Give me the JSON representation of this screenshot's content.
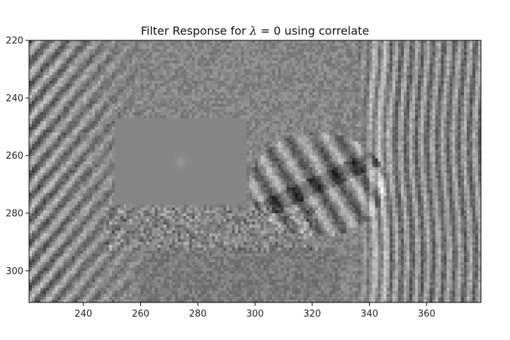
{
  "chart_data": {
    "type": "heatmap",
    "title": {
      "prefix": "Filter Response for ",
      "math": "λ",
      "suffix": " = 0 using correlate"
    },
    "xlabel": "",
    "ylabel": "",
    "colormap": "gray",
    "xlim": [
      221,
      379
    ],
    "ylim": [
      311,
      220
    ],
    "y_inverted": true,
    "xticks": [
      240,
      260,
      280,
      300,
      320,
      340,
      360
    ],
    "yticks": [
      220,
      240,
      260,
      280,
      300
    ],
    "grid": false,
    "flat_region": {
      "x": [
        251,
        297
      ],
      "y": [
        247,
        277
      ],
      "value": 0.52,
      "spot": {
        "x": 274,
        "y": 262,
        "peak": 0.6
      }
    },
    "background": {
      "mean": 0.52,
      "features": [
        "diagonal bright/dark streaks at left (x 221-262, y 220-300)",
        "vertical streaks at right (x 335-379)",
        "eye-shaped textured region (x 300-345, y 250-290)",
        "noisy texture band (x 250-320, y 280-292)"
      ]
    }
  }
}
